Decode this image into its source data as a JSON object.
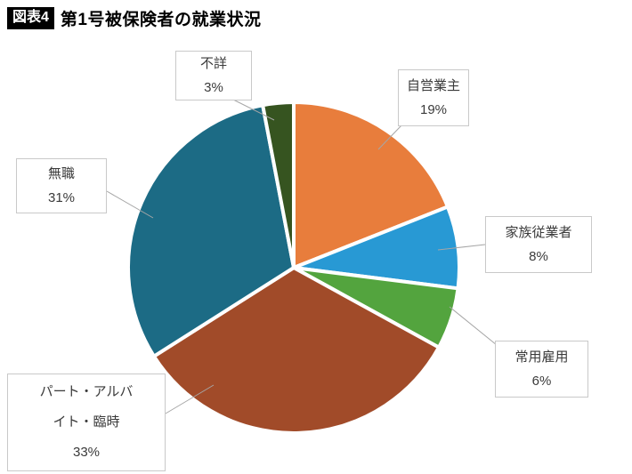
{
  "header": {
    "badge": "図表4",
    "title": "第1号被保険者の就業状況"
  },
  "chart_data": {
    "type": "pie",
    "title": "第1号被保険者の就業状況",
    "start_angle_deg": -90,
    "direction": "clockwise",
    "unit": "%",
    "legend_position": "none",
    "slices": [
      {
        "label": "自営業主",
        "pct": 19,
        "color": "#E87D3C",
        "callout_lines": [
          "自営業主",
          "19%"
        ]
      },
      {
        "label": "家族従業者",
        "pct": 8,
        "color": "#2899D4",
        "callout_lines": [
          "家族従業者",
          "8%"
        ]
      },
      {
        "label": "常用雇用",
        "pct": 6,
        "color": "#53A43E",
        "callout_lines": [
          "常用雇用",
          "6%"
        ]
      },
      {
        "label": "パート・アルバイト・臨時",
        "pct": 33,
        "color": "#A14B29",
        "callout_lines": [
          "パート・アルバ",
          "イト・臨時",
          "33%"
        ]
      },
      {
        "label": "無職",
        "pct": 31,
        "color": "#1C6B85",
        "callout_lines": [
          "無職",
          "31%"
        ]
      },
      {
        "label": "不詳",
        "pct": 3,
        "color": "#365420",
        "callout_lines": [
          "不詳",
          "3%"
        ]
      }
    ]
  }
}
